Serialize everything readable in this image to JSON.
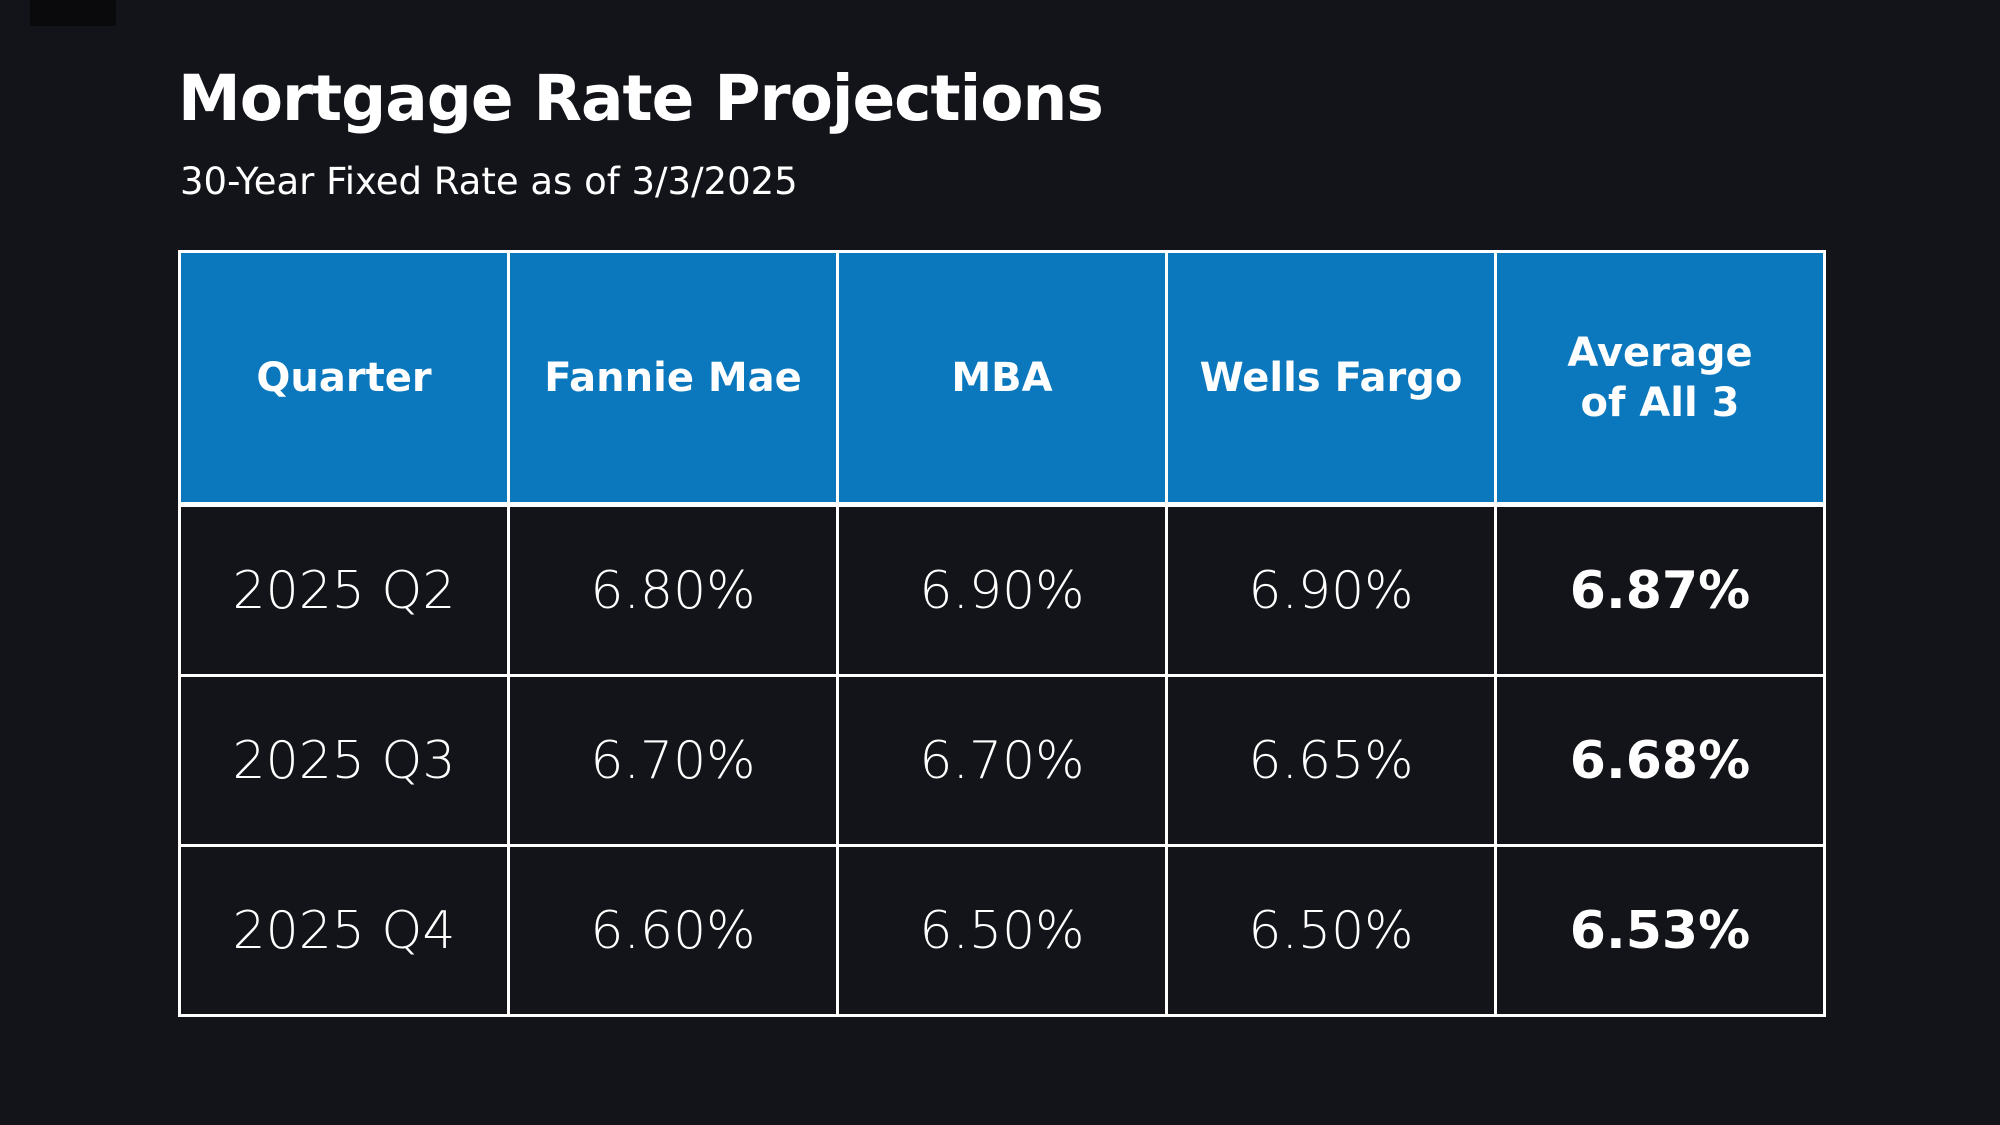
{
  "colors": {
    "background": "#131419",
    "header_blue": "#0b78bd",
    "grid_border": "#ffffff",
    "text": "#ffffff"
  },
  "header": {
    "title": "Mortgage Rate Projections",
    "subtitle": "30-Year Fixed Rate as of 3/3/2025"
  },
  "table": {
    "headers": [
      "Quarter",
      "Fannie Mae",
      "MBA",
      "Wells Fargo",
      "Average\nof All 3"
    ],
    "rows": [
      [
        "2025 Q2",
        "6.80%",
        "6.90%",
        "6.90%",
        "6.87%"
      ],
      [
        "2025 Q3",
        "6.70%",
        "6.70%",
        "6.65%",
        "6.68%"
      ],
      [
        "2025 Q4",
        "6.60%",
        "6.50%",
        "6.50%",
        "6.53%"
      ]
    ]
  },
  "chart_data": {
    "type": "table",
    "title": "Mortgage Rate Projections",
    "subtitle": "30-Year Fixed Rate as of 3/3/2025",
    "columns": [
      "Quarter",
      "Fannie Mae",
      "MBA",
      "Wells Fargo",
      "Average of All 3"
    ],
    "categories": [
      "2025 Q2",
      "2025 Q3",
      "2025 Q4"
    ],
    "unit": "%",
    "series": [
      {
        "name": "Fannie Mae",
        "values": [
          6.8,
          6.7,
          6.6
        ]
      },
      {
        "name": "MBA",
        "values": [
          6.9,
          6.7,
          6.5
        ]
      },
      {
        "name": "Wells Fargo",
        "values": [
          6.9,
          6.65,
          6.5
        ]
      },
      {
        "name": "Average of All 3",
        "values": [
          6.87,
          6.68,
          6.53
        ]
      }
    ]
  }
}
